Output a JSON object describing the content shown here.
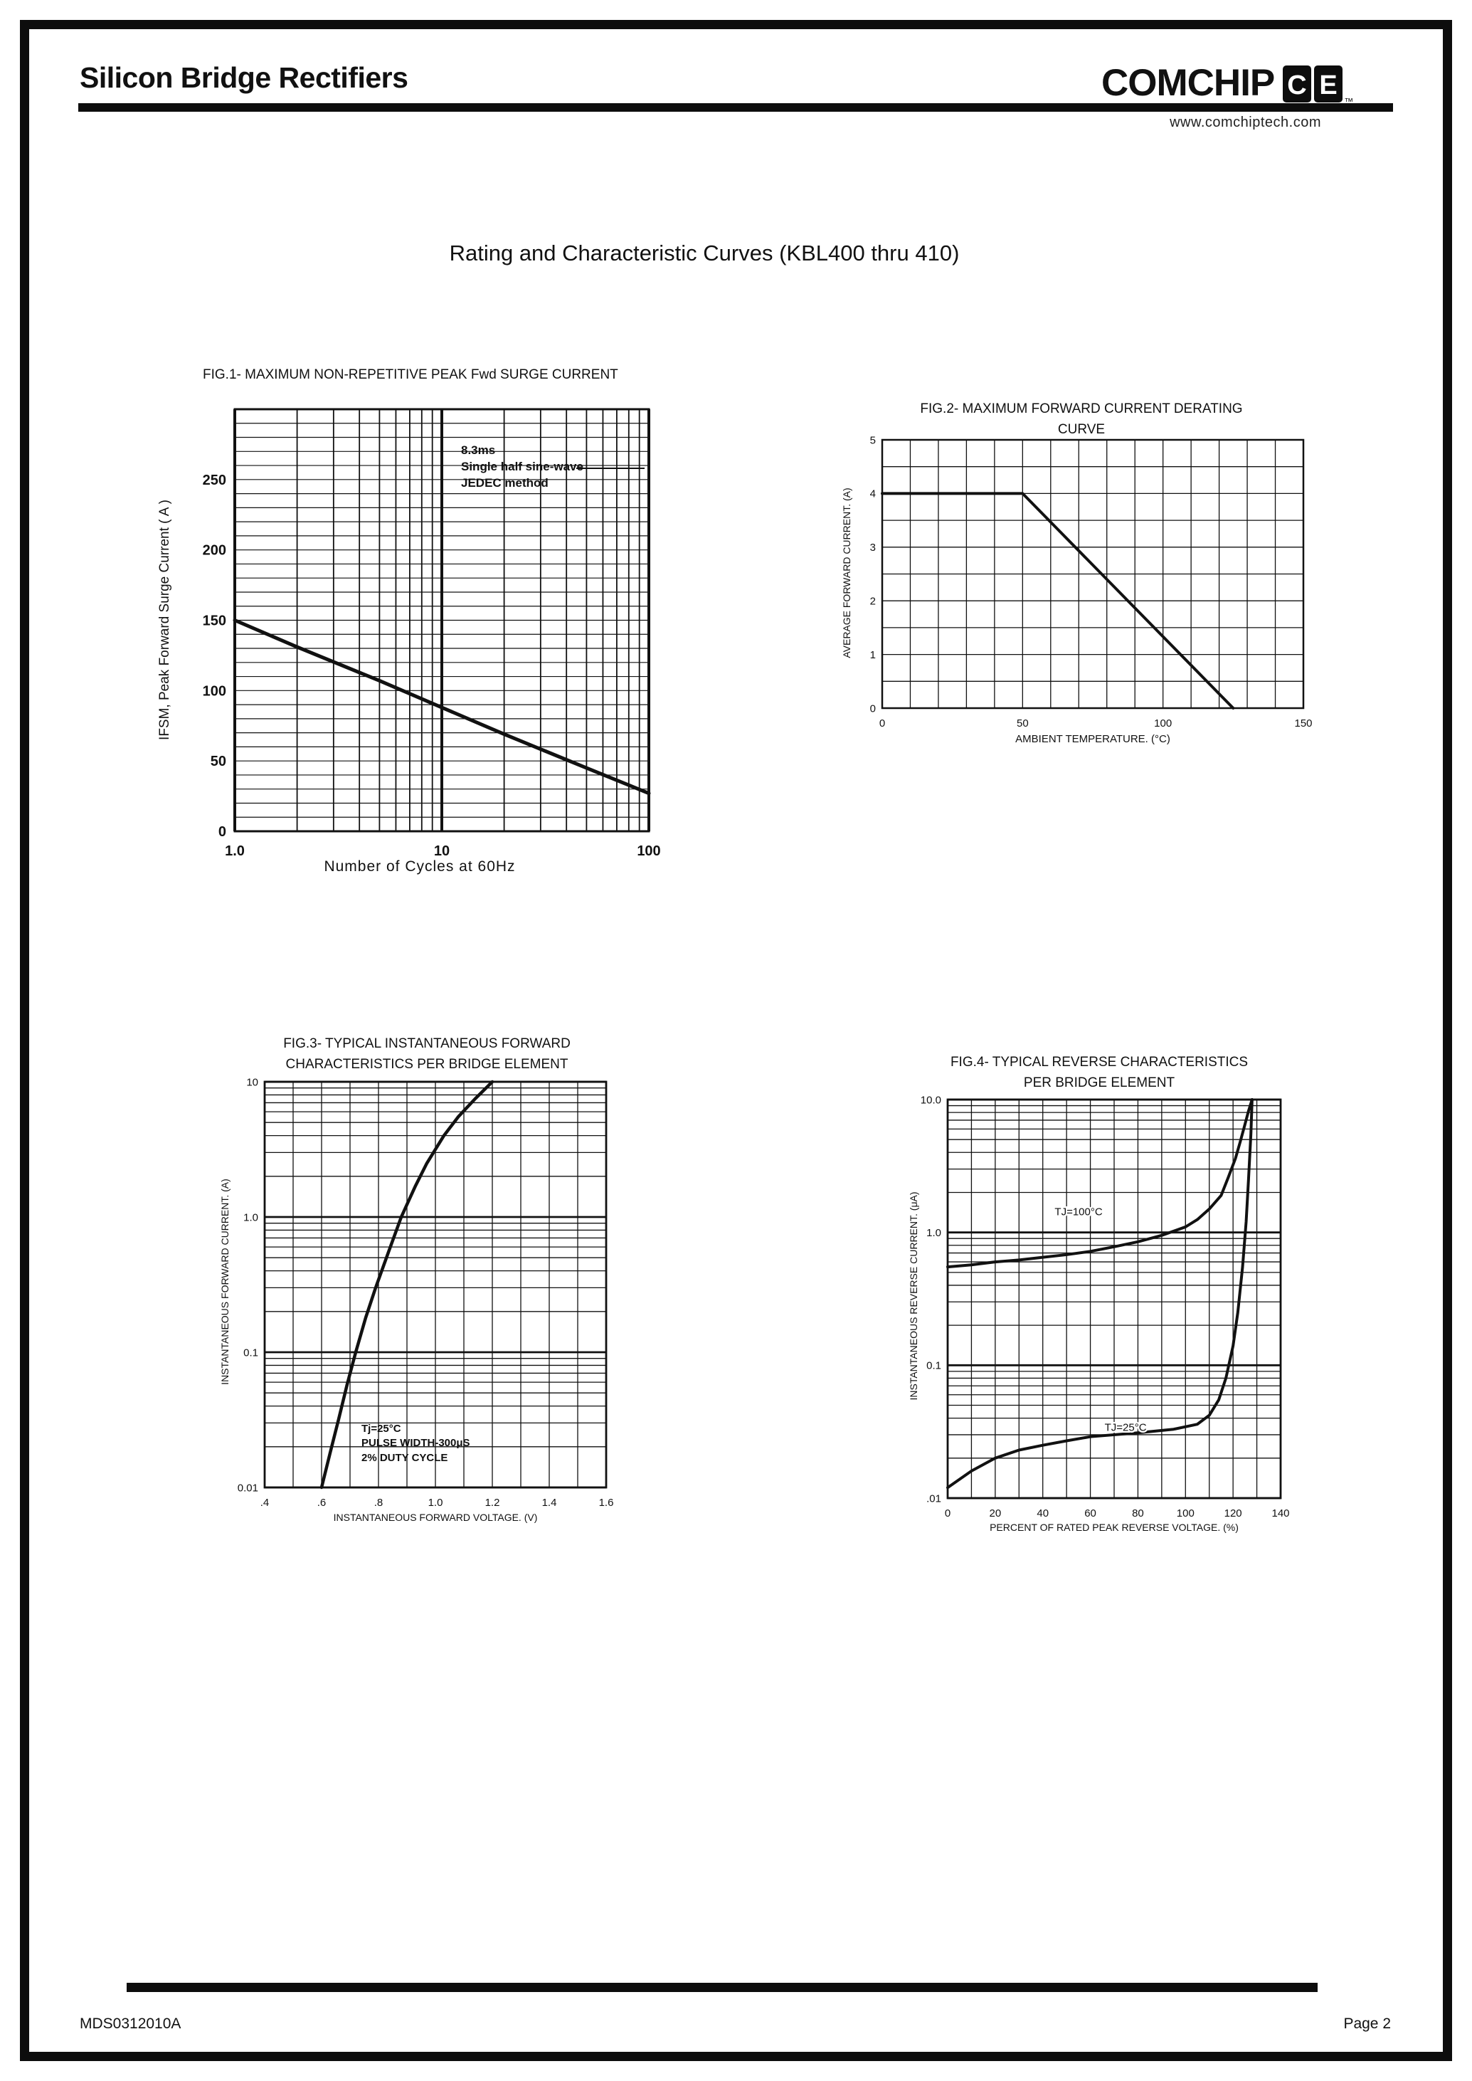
{
  "colors": {
    "ink": "#111111",
    "paper": "#ffffff"
  },
  "page": {
    "header_title": "Silicon Bridge Rectifiers",
    "brand": "COMCHIP",
    "logo_letters": [
      "C",
      "E"
    ],
    "brand_tm": "™",
    "website": "www.comchiptech.com",
    "doc_title": "Rating and Characteristic Curves (KBL400 thru 410)",
    "footer_left": "MDS0312010A",
    "footer_right": "Page 2"
  },
  "chart_data": [
    {
      "id": "fig1",
      "type": "line",
      "title": "FIG.1- MAXIMUM NON-REPETITIVE PEAK Fwd SURGE CURRENT",
      "xlabel": "Number of Cycles at 60Hz",
      "ylabel": "IFSM, Peak Forward Surge Current ( A )",
      "annotation": "8.3ms\nSingle half sine-wave\nJEDEC method",
      "x": {
        "scale": "log",
        "min": 1,
        "max": 100,
        "ticks": [
          {
            "v": 1,
            "t": "1.0"
          },
          {
            "v": 10,
            "t": "10"
          },
          {
            "v": 100,
            "t": "100"
          }
        ]
      },
      "y": {
        "scale": "linear",
        "min": 0,
        "max": 300,
        "minor": 10,
        "ticks": [
          {
            "v": 0,
            "t": "0"
          },
          {
            "v": 50,
            "t": "50"
          },
          {
            "v": 100,
            "t": "100"
          },
          {
            "v": 150,
            "t": "150"
          },
          {
            "v": 200,
            "t": "200"
          },
          {
            "v": 250,
            "t": "250"
          }
        ]
      },
      "series": [
        {
          "name": "peak-forward-surge-current",
          "x": [
            1,
            2,
            5,
            10,
            20,
            50,
            100
          ],
          "y": [
            150,
            131,
            107,
            88,
            69,
            45,
            27
          ]
        }
      ]
    },
    {
      "id": "fig2",
      "type": "line",
      "title": "FIG.2- MAXIMUM FORWARD CURRENT DERATING\nCURVE",
      "xlabel": "AMBIENT TEMPERATURE. (°C)",
      "ylabel": "AVERAGE FORWARD CURRENT. (A)",
      "x": {
        "scale": "linear",
        "min": 0,
        "max": 150,
        "minor": 10,
        "ticks": [
          {
            "v": 0,
            "t": "0"
          },
          {
            "v": 50,
            "t": "50"
          },
          {
            "v": 100,
            "t": "100"
          },
          {
            "v": 150,
            "t": "150"
          }
        ]
      },
      "y": {
        "scale": "linear",
        "min": 0,
        "max": 5,
        "minor": 0.5,
        "ticks": [
          {
            "v": 0,
            "t": "0"
          },
          {
            "v": 1,
            "t": "1"
          },
          {
            "v": 2,
            "t": "2"
          },
          {
            "v": 3,
            "t": "3"
          },
          {
            "v": 4,
            "t": "4"
          },
          {
            "v": 5,
            "t": "5"
          }
        ]
      },
      "series": [
        {
          "name": "max-average-forward-current",
          "x": [
            0,
            50,
            125
          ],
          "y": [
            4,
            4,
            0
          ]
        }
      ]
    },
    {
      "id": "fig3",
      "type": "line",
      "title": "FIG.3- TYPICAL INSTANTANEOUS FORWARD\nCHARACTERISTICS PER BRIDGE ELEMENT",
      "xlabel": "INSTANTANEOUS FORWARD VOLTAGE. (V)",
      "ylabel": "INSTANTANEOUS FORWARD CURRENT. (A)",
      "annotation": "Tj=25°C\nPULSE WIDTH-300μS\n2% DUTY CYCLE",
      "x": {
        "scale": "linear",
        "min": 0.4,
        "max": 1.6,
        "minor": 0.1,
        "ticks": [
          {
            "v": 0.4,
            "t": ".4"
          },
          {
            "v": 0.6,
            "t": ".6"
          },
          {
            "v": 0.8,
            "t": ".8"
          },
          {
            "v": 1,
            "t": "1.0"
          },
          {
            "v": 1.2,
            "t": "1.2"
          },
          {
            "v": 1.4,
            "t": "1.4"
          },
          {
            "v": 1.6,
            "t": "1.6"
          }
        ]
      },
      "y": {
        "scale": "log",
        "min": 0.01,
        "max": 10,
        "ticks": [
          {
            "v": 10,
            "t": "10"
          },
          {
            "v": 1,
            "t": "1.0"
          },
          {
            "v": 0.1,
            "t": "0.1"
          },
          {
            "v": 0.01,
            "t": "0.01"
          }
        ]
      },
      "series": [
        {
          "name": "instantaneous-forward-current",
          "x": [
            0.6,
            0.63,
            0.66,
            0.69,
            0.72,
            0.755,
            0.79,
            0.835,
            0.88,
            0.93,
            0.97,
            1.03,
            1.08,
            1.14,
            1.2
          ],
          "y": [
            0.01,
            0.018,
            0.032,
            0.058,
            0.1,
            0.18,
            0.3,
            0.55,
            1.0,
            1.7,
            2.5,
            4.0,
            5.5,
            7.5,
            10
          ]
        }
      ]
    },
    {
      "id": "fig4",
      "type": "line",
      "title": "FIG.4- TYPICAL REVERSE CHARACTERISTICS\nPER BRIDGE ELEMENT",
      "xlabel": "PERCENT OF RATED PEAK REVERSE VOLTAGE. (%)",
      "ylabel": "INSTANTANEOUS REVERSE CURRENT. (μA)",
      "x": {
        "scale": "linear",
        "min": 0,
        "max": 140,
        "minor": 10,
        "ticks": [
          {
            "v": 0,
            "t": "0"
          },
          {
            "v": 20,
            "t": "20"
          },
          {
            "v": 40,
            "t": "40"
          },
          {
            "v": 60,
            "t": "60"
          },
          {
            "v": 80,
            "t": "80"
          },
          {
            "v": 100,
            "t": "100"
          },
          {
            "v": 120,
            "t": "120"
          },
          {
            "v": 140,
            "t": "140"
          }
        ]
      },
      "y": {
        "scale": "log",
        "min": 0.01,
        "max": 10,
        "ticks": [
          {
            "v": 10,
            "t": "10.0"
          },
          {
            "v": 1,
            "t": "1.0"
          },
          {
            "v": 0.1,
            "t": "0.1"
          },
          {
            "v": 0.01,
            "t": ".01"
          }
        ]
      },
      "series": [
        {
          "name": "reverse-current-tj-100c",
          "label": "TJ=100°C",
          "x": [
            0,
            10,
            20,
            30,
            40,
            50,
            60,
            70,
            80,
            90,
            100,
            105,
            110,
            115,
            118,
            121,
            123,
            125,
            126.5,
            128
          ],
          "y": [
            0.55,
            0.57,
            0.6,
            0.62,
            0.65,
            0.68,
            0.72,
            0.78,
            0.85,
            0.95,
            1.1,
            1.25,
            1.5,
            1.9,
            2.6,
            3.6,
            4.8,
            6.5,
            8.2,
            10
          ]
        },
        {
          "name": "reverse-current-tj-25c",
          "label": "TJ=25°C",
          "x": [
            0,
            10,
            20,
            30,
            40,
            50,
            60,
            80,
            95,
            105,
            110,
            114,
            117,
            120,
            122,
            124,
            125.5,
            126.5,
            127.5,
            128
          ],
          "y": [
            0.012,
            0.016,
            0.02,
            0.023,
            0.025,
            0.027,
            0.029,
            0.031,
            0.033,
            0.036,
            0.042,
            0.055,
            0.08,
            0.14,
            0.25,
            0.55,
            1.2,
            2.5,
            5.5,
            10
          ]
        }
      ]
    }
  ]
}
